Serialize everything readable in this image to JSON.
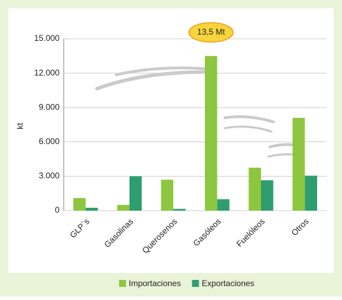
{
  "chart_data": {
    "type": "bar",
    "annotation": "13,5 Mt",
    "y_label": "kt",
    "categories": [
      "GLP´s",
      "Gasolinas",
      "Querosenos",
      "Gasóleos",
      "Fuelóleos",
      "Otros"
    ],
    "series": [
      {
        "name": "Importaciones",
        "color": "#8dc63f",
        "values": [
          1100,
          500,
          2700,
          13500,
          3750,
          8100
        ]
      },
      {
        "name": "Exportaciones",
        "color": "#2e9e6e",
        "values": [
          250,
          3000,
          150,
          1000,
          2650,
          3050
        ]
      }
    ],
    "ylim": [
      0,
      15000
    ],
    "yticks": [
      0,
      {
        "value": 3000,
        "label": "3.000"
      },
      {
        "value": 6000,
        "label": "6.000"
      },
      {
        "value": 9000,
        "label": "9.000"
      },
      {
        "value": 12000,
        "label": "12.000"
      },
      {
        "value": 15000,
        "label": "15.000"
      }
    ],
    "grid": true
  }
}
